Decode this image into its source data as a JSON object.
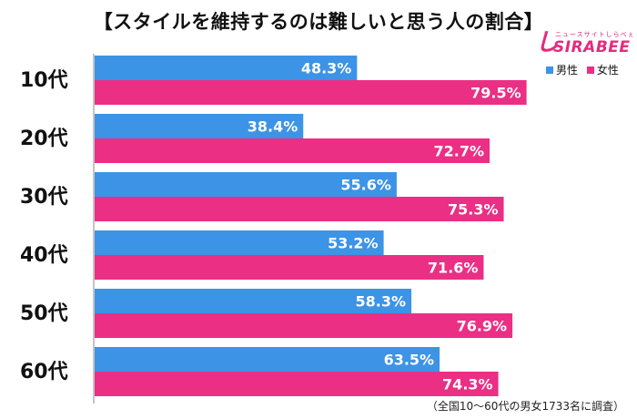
{
  "title": "【スタイルを維持するのは難しいと思う人の割合】",
  "logo": {
    "subtitle": "ニュースサイトしらべぇ",
    "mark": "し",
    "wordmark": "SIRABEE"
  },
  "footnote": "（全国10～60代の男女1733名に調査）",
  "chart_data": {
    "type": "bar",
    "orientation": "horizontal",
    "categories": [
      "10代",
      "20代",
      "30代",
      "40代",
      "50代",
      "60代"
    ],
    "series": [
      {
        "name": "男性",
        "color": "#3d93e6",
        "values": [
          48.3,
          38.4,
          55.6,
          53.2,
          58.3,
          63.5
        ],
        "labels": [
          "48.3%",
          "38.4%",
          "55.6%",
          "53.2%",
          "58.3%",
          "63.5%"
        ]
      },
      {
        "name": "女性",
        "color": "#ea2f85",
        "values": [
          79.5,
          72.7,
          75.3,
          71.6,
          76.9,
          74.3
        ],
        "labels": [
          "79.5%",
          "72.7%",
          "75.3%",
          "71.6%",
          "76.9%",
          "74.3%"
        ]
      }
    ],
    "xlim": [
      0,
      100
    ],
    "legend": "top-right",
    "grid": false
  }
}
